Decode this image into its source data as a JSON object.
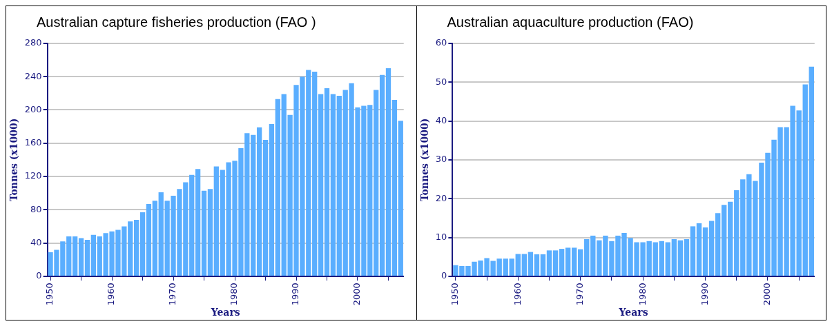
{
  "chart_data": [
    {
      "type": "bar",
      "title": "Australian capture fisheries production (FAO )",
      "xlabel": "Years",
      "ylabel": "Tonnes (x1000)",
      "categories": [
        "1950",
        null,
        null,
        null,
        null,
        null,
        null,
        null,
        null,
        null,
        "1960",
        null,
        null,
        null,
        null,
        null,
        null,
        null,
        null,
        null,
        "1970",
        null,
        null,
        null,
        null,
        null,
        null,
        null,
        null,
        null,
        "1980",
        null,
        null,
        null,
        null,
        null,
        null,
        null,
        null,
        null,
        "1990",
        null,
        null,
        null,
        null,
        null,
        null,
        null,
        null,
        null,
        "2000",
        null,
        null,
        null,
        null,
        null,
        null,
        null
      ],
      "values": [
        29,
        32,
        42,
        48,
        48,
        46,
        44,
        50,
        48,
        52,
        54,
        56,
        60,
        66,
        68,
        77,
        87,
        91,
        101,
        91,
        97,
        105,
        113,
        122,
        129,
        103,
        105,
        132,
        128,
        137,
        139,
        154,
        172,
        170,
        179,
        164,
        183,
        213,
        219,
        194,
        230,
        240,
        248,
        246,
        219,
        226,
        219,
        217,
        224,
        232,
        203,
        205,
        206,
        224,
        242,
        250,
        212,
        187
      ],
      "color": "#5aaeff",
      "ylim": [
        0,
        280
      ],
      "yticks": [
        0,
        40,
        80,
        120,
        160,
        200,
        240,
        280
      ],
      "grid": "y"
    },
    {
      "type": "bar",
      "title": "Australian aquaculture production (FAO)",
      "xlabel": "Years",
      "ylabel": "Tonnes (x1000)",
      "categories": [
        "1950",
        null,
        null,
        null,
        null,
        null,
        null,
        null,
        null,
        null,
        "1960",
        null,
        null,
        null,
        null,
        null,
        null,
        null,
        null,
        null,
        "1970",
        null,
        null,
        null,
        null,
        null,
        null,
        null,
        null,
        null,
        "1980",
        null,
        null,
        null,
        null,
        null,
        null,
        null,
        null,
        null,
        "1990",
        null,
        null,
        null,
        null,
        null,
        null,
        null,
        null,
        null,
        "2000",
        null,
        null,
        null,
        null,
        null,
        null,
        null
      ],
      "values": [
        2.9,
        2.7,
        2.7,
        3.8,
        4.1,
        4.7,
        4.0,
        4.6,
        4.6,
        4.6,
        5.8,
        5.8,
        6.3,
        5.7,
        5.7,
        6.7,
        6.7,
        7.1,
        7.4,
        7.4,
        7.0,
        9.6,
        10.5,
        9.3,
        10.5,
        9.1,
        10.5,
        11.2,
        9.9,
        8.8,
        8.8,
        9.1,
        8.8,
        9.1,
        8.8,
        9.6,
        9.3,
        9.6,
        12.9,
        13.7,
        12.6,
        14.3,
        16.3,
        18.4,
        19.2,
        22.2,
        25.0,
        26.3,
        24.6,
        29.3,
        31.8,
        35.2,
        38.4,
        38.4,
        43.9,
        42.7,
        49.4,
        54.0
      ],
      "color": "#5aaeff",
      "ylim": [
        0,
        60
      ],
      "yticks": [
        0,
        10,
        20,
        30,
        40,
        50,
        60
      ],
      "grid": "y"
    }
  ]
}
